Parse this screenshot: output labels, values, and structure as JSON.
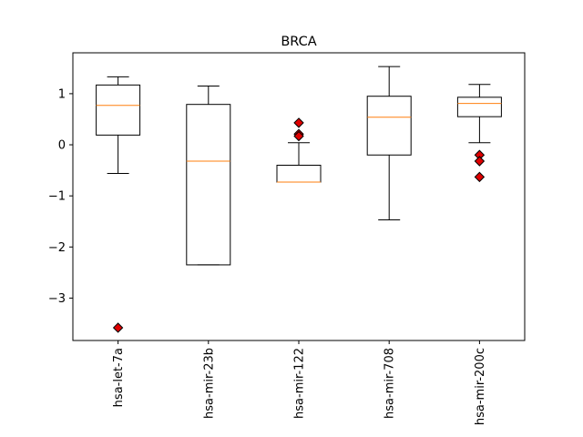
{
  "chart_data": {
    "type": "boxplot",
    "title": "BRCA",
    "xlabel": "",
    "ylabel": "",
    "categories": [
      "hsa-let-7a",
      "hsa-mir-23b",
      "hsa-mir-122",
      "hsa-mir-708",
      "hsa-mir-200c"
    ],
    "ylim": [
      -3.83,
      1.8
    ],
    "yticks": [
      1,
      0,
      -1,
      -2,
      -3
    ],
    "ytick_labels": [
      "1",
      "0",
      "−1",
      "−2",
      "−3"
    ],
    "grid": false,
    "boxes": [
      {
        "name": "hsa-let-7a",
        "whisker_low": -0.56,
        "q1": 0.19,
        "median": 0.77,
        "q3": 1.17,
        "whisker_high": 1.33,
        "outliers": [
          -3.58
        ]
      },
      {
        "name": "hsa-mir-23b",
        "whisker_low": -2.35,
        "q1": -2.35,
        "median": -0.32,
        "q3": 0.79,
        "whisker_high": 1.15,
        "outliers": []
      },
      {
        "name": "hsa-mir-122",
        "whisker_low": -0.73,
        "q1": -0.73,
        "median": -0.73,
        "q3": -0.4,
        "whisker_high": 0.04,
        "outliers": [
          0.43,
          0.21,
          0.17
        ]
      },
      {
        "name": "hsa-mir-708",
        "whisker_low": -1.47,
        "q1": -0.2,
        "median": 0.54,
        "q3": 0.95,
        "whisker_high": 1.53,
        "outliers": []
      },
      {
        "name": "hsa-mir-200c",
        "whisker_low": 0.04,
        "q1": 0.55,
        "median": 0.81,
        "q3": 0.93,
        "whisker_high": 1.18,
        "outliers": [
          -0.2,
          -0.32,
          -0.63
        ]
      }
    ],
    "colors": {
      "box": "#000000",
      "median": "#ff7f0e",
      "outlier_fill": "#e00000",
      "outlier_edge": "#000000"
    }
  }
}
